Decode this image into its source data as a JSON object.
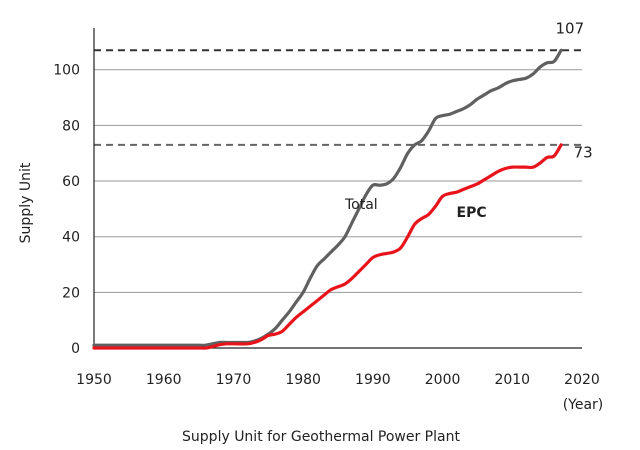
{
  "chart_data": {
    "type": "line",
    "title": "",
    "caption": "Supply Unit for Geothermal Power Plant",
    "xlabel": "",
    "x_unit": "(Year)",
    "ylabel": "Supply Unit",
    "xlim": [
      1950,
      2020
    ],
    "ylim": [
      0,
      115
    ],
    "x_ticks": [
      1950,
      1960,
      1970,
      1980,
      1990,
      2000,
      2010,
      2020
    ],
    "y_ticks": [
      0,
      20,
      40,
      60,
      80,
      100
    ],
    "grid": "horizontal",
    "legend": "none",
    "series": [
      {
        "name": "Total",
        "color": "#606060",
        "points": [
          [
            1950,
            1
          ],
          [
            1955,
            1
          ],
          [
            1960,
            1
          ],
          [
            1965,
            1
          ],
          [
            1966,
            1
          ],
          [
            1967,
            1.5
          ],
          [
            1968,
            2
          ],
          [
            1969,
            2
          ],
          [
            1970,
            2
          ],
          [
            1972,
            2
          ],
          [
            1973,
            2.5
          ],
          [
            1974,
            3.5
          ],
          [
            1975,
            5
          ],
          [
            1976,
            7
          ],
          [
            1977,
            10
          ],
          [
            1978,
            13
          ],
          [
            1979,
            16.5
          ],
          [
            1980,
            20
          ],
          [
            1981,
            25
          ],
          [
            1982,
            29.5
          ],
          [
            1983,
            32
          ],
          [
            1984,
            34.5
          ],
          [
            1985,
            37
          ],
          [
            1986,
            40
          ],
          [
            1987,
            45
          ],
          [
            1988,
            50
          ],
          [
            1989,
            55
          ],
          [
            1990,
            58.5
          ],
          [
            1991,
            58.5
          ],
          [
            1992,
            59
          ],
          [
            1993,
            61
          ],
          [
            1994,
            65
          ],
          [
            1995,
            70
          ],
          [
            1996,
            73
          ],
          [
            1997,
            74.5
          ],
          [
            1998,
            78
          ],
          [
            1999,
            82.5
          ],
          [
            2000,
            83.5
          ],
          [
            2001,
            84
          ],
          [
            2002,
            85
          ],
          [
            2003,
            86
          ],
          [
            2004,
            87.5
          ],
          [
            2005,
            89.5
          ],
          [
            2006,
            91
          ],
          [
            2007,
            92.5
          ],
          [
            2008,
            93.5
          ],
          [
            2009,
            95
          ],
          [
            2010,
            96
          ],
          [
            2011,
            96.5
          ],
          [
            2012,
            97
          ],
          [
            2013,
            98.5
          ],
          [
            2014,
            101
          ],
          [
            2015,
            102.5
          ],
          [
            2016,
            103
          ],
          [
            2017,
            107
          ]
        ]
      },
      {
        "name": "EPC",
        "color": "#e8141b",
        "points": [
          [
            1950,
            0
          ],
          [
            1955,
            0
          ],
          [
            1960,
            0
          ],
          [
            1965,
            0
          ],
          [
            1966,
            0
          ],
          [
            1967,
            0.5
          ],
          [
            1968,
            1.2
          ],
          [
            1969,
            1.5
          ],
          [
            1970,
            1.5
          ],
          [
            1972,
            1.5
          ],
          [
            1973,
            2
          ],
          [
            1974,
            3
          ],
          [
            1975,
            4.5
          ],
          [
            1976,
            5
          ],
          [
            1977,
            6
          ],
          [
            1978,
            8.5
          ],
          [
            1979,
            11
          ],
          [
            1980,
            13
          ],
          [
            1981,
            15
          ],
          [
            1982,
            17
          ],
          [
            1983,
            19
          ],
          [
            1984,
            21
          ],
          [
            1985,
            22
          ],
          [
            1986,
            23
          ],
          [
            1987,
            25
          ],
          [
            1988,
            27.5
          ],
          [
            1989,
            30
          ],
          [
            1990,
            32.5
          ],
          [
            1991,
            33.5
          ],
          [
            1992,
            34
          ],
          [
            1993,
            34.5
          ],
          [
            1994,
            36
          ],
          [
            1995,
            40
          ],
          [
            1996,
            44.5
          ],
          [
            1997,
            46.5
          ],
          [
            1998,
            48
          ],
          [
            1999,
            51
          ],
          [
            2000,
            54.5
          ],
          [
            2001,
            55.5
          ],
          [
            2002,
            56
          ],
          [
            2003,
            57
          ],
          [
            2004,
            58
          ],
          [
            2005,
            59
          ],
          [
            2006,
            60.5
          ],
          [
            2007,
            62
          ],
          [
            2008,
            63.5
          ],
          [
            2009,
            64.5
          ],
          [
            2010,
            65
          ],
          [
            2011,
            65
          ],
          [
            2012,
            65
          ],
          [
            2013,
            65
          ],
          [
            2014,
            66.5
          ],
          [
            2015,
            68.5
          ],
          [
            2016,
            69
          ],
          [
            2017,
            73
          ]
        ]
      }
    ],
    "series_labels": [
      {
        "text": "Total",
        "x": 1986,
        "y": 50,
        "bold": false
      },
      {
        "text": "EPC",
        "x": 2002,
        "y": 47,
        "bold": true
      }
    ],
    "reference_lines": [
      {
        "value": 107,
        "label": "107",
        "color": "#333333"
      },
      {
        "value": 73,
        "label": "73",
        "color": "#666666"
      }
    ],
    "end_labels": [
      {
        "text": "107",
        "x": 2016.2,
        "y": 113
      },
      {
        "text": "73",
        "x": 2018.8,
        "y": 68.5
      }
    ]
  }
}
